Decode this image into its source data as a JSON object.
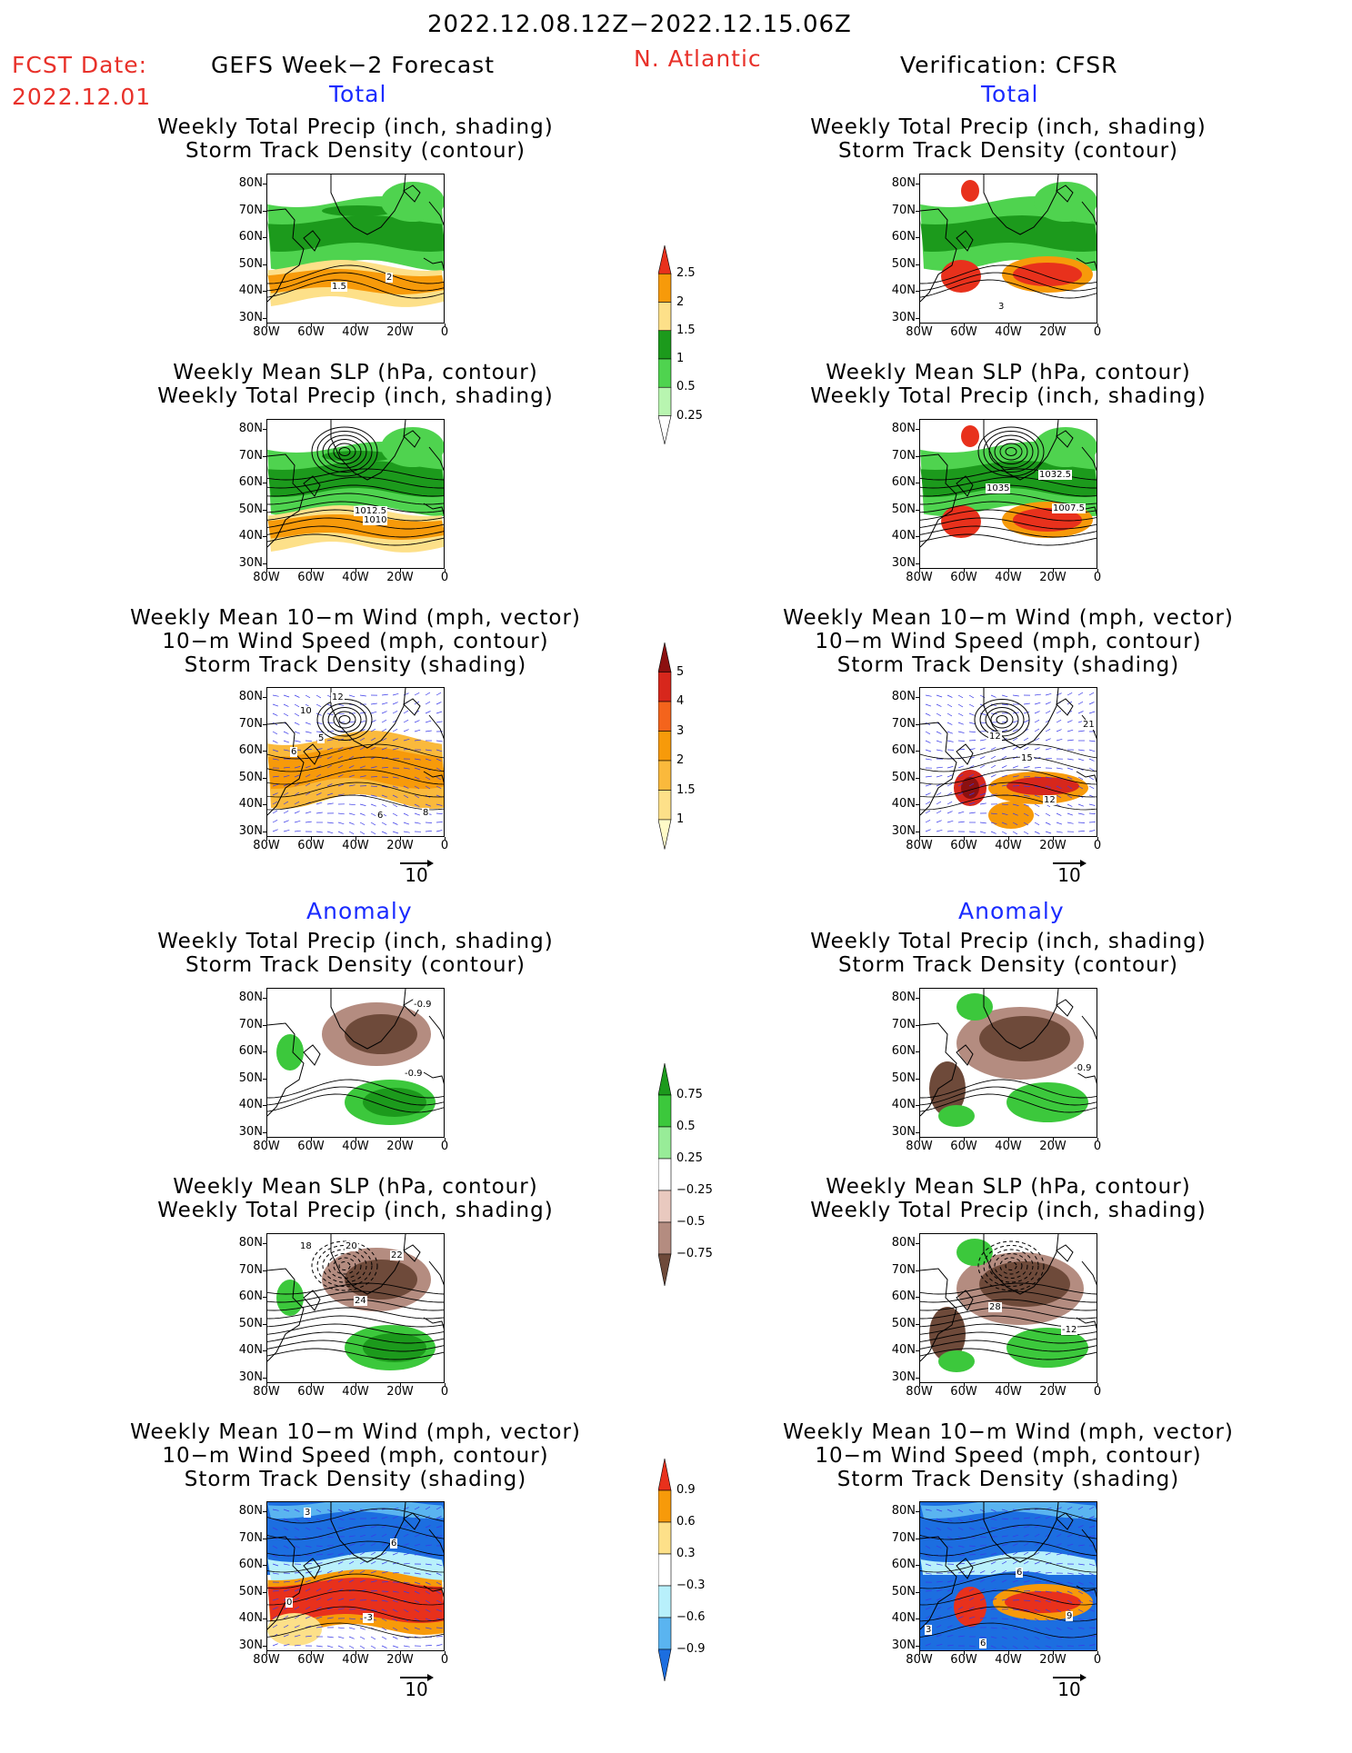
{
  "header": {
    "date_range": "2022.12.08.12Z−2022.12.15.06Z",
    "fcst_label": "FCST Date:",
    "fcst_date": "2022.12.01",
    "left_title": "GEFS Week−2 Forecast",
    "region": "N. Atlantic",
    "right_title": "Verification: CFSR"
  },
  "sections": {
    "total": "Total",
    "anomaly": "Anomaly"
  },
  "panel_titles": {
    "precip_track": [
      "Weekly Total Precip (inch, shading)",
      "Storm Track Density (contour)"
    ],
    "slp_precip": [
      "Weekly Mean SLP (hPa, contour)",
      "Weekly Total Precip (inch, shading)"
    ],
    "wind_track": [
      "Weekly Mean 10−m Wind (mph, vector)",
      "10−m Wind Speed (mph, contour)",
      "Storm Track Density (shading)"
    ]
  },
  "axes": {
    "lat_labels": [
      "80N",
      "70N",
      "60N",
      "50N",
      "40N",
      "30N"
    ],
    "lon_labels": [
      "80W",
      "60W",
      "40W",
      "20W",
      "0"
    ]
  },
  "vector_ref": "10",
  "colorbars": {
    "precip_total": {
      "labels": [
        "2.5",
        "2",
        "1.5",
        "1",
        "0.5",
        "0.25"
      ],
      "colors": [
        "#e8311c",
        "#f79a0a",
        "#fde089",
        "#1c9a1c",
        "#4fd34f",
        "#b8f5b0"
      ]
    },
    "track_total": {
      "labels": [
        "5",
        "4",
        "3",
        "2",
        "1.5",
        "1"
      ],
      "colors": [
        "#8c1010",
        "#d7271c",
        "#f4641c",
        "#f79a0a",
        "#fab93c",
        "#fde089",
        "#fffbc8"
      ]
    },
    "precip_anom": {
      "labels": [
        "0.75",
        "0.5",
        "0.25",
        "−0.25",
        "−0.5",
        "−0.75"
      ],
      "colors": [
        "#1c9a1c",
        "#3cc83c",
        "#98ec98",
        "#ffffff",
        "#e9c9bf",
        "#b48c80",
        "#6e4a3a"
      ]
    },
    "track_anom": {
      "labels": [
        "0.9",
        "0.6",
        "0.3",
        "−0.3",
        "−0.6",
        "−0.9"
      ],
      "colors": [
        "#e8311c",
        "#f79a0a",
        "#fde089",
        "#ffffff",
        "#b8f0fb",
        "#5ab4f0",
        "#1c6ee0"
      ]
    }
  },
  "contour_labels": {
    "r1_left": [
      "1.5",
      "2"
    ],
    "r1_right": [
      "3"
    ],
    "r2_left": [
      "1012.5",
      "1010"
    ],
    "r2_right": [
      "1035",
      "1032.5",
      "1007.5"
    ],
    "r3_left": [
      "12",
      "10",
      "5",
      "6",
      "6",
      "8"
    ],
    "r3_right": [
      "12",
      "15",
      "12",
      "21"
    ],
    "r4_left": [
      "-0.9",
      "-0.9"
    ],
    "r4_right": [
      "-0.9"
    ],
    "r5_left": [
      "18",
      "20",
      "22",
      "24"
    ],
    "r5_right": [
      "28",
      "-12"
    ],
    "r6_left": [
      "3",
      "6",
      "-3",
      "0"
    ],
    "r6_right": [
      "6",
      "9",
      "3",
      "6"
    ]
  }
}
